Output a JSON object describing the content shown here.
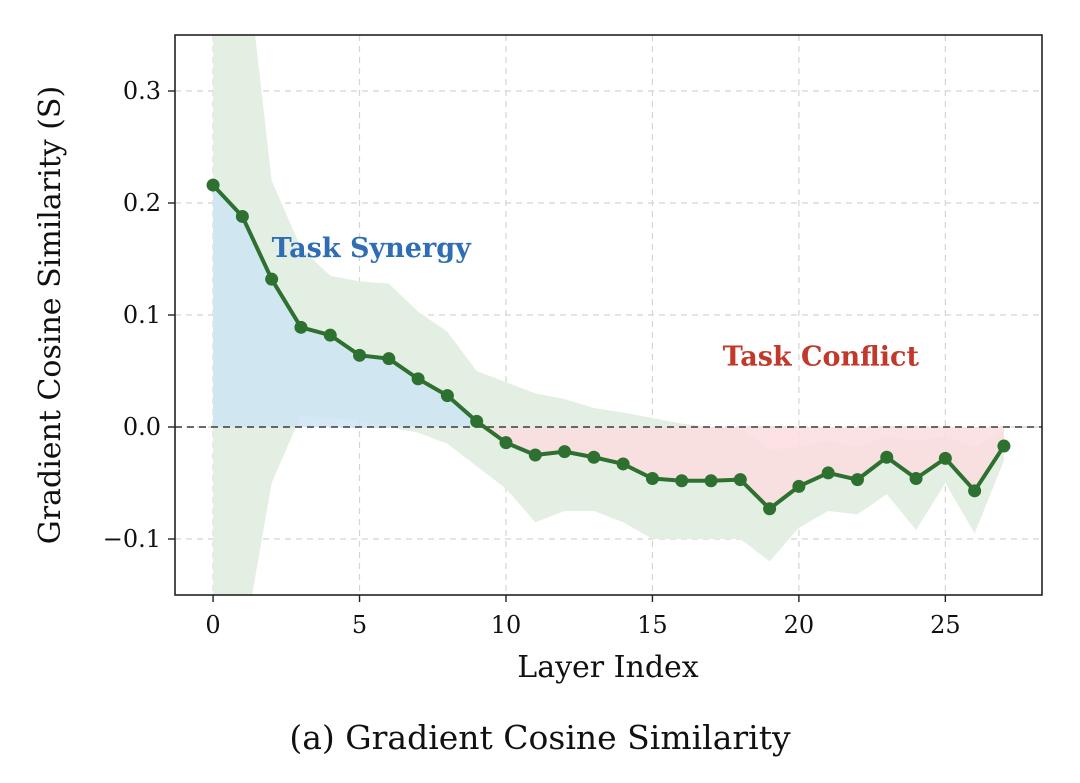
{
  "chart_data": {
    "type": "line",
    "title": "",
    "caption": "(a) Gradient Cosine Similarity",
    "xlabel": "Layer Index",
    "ylabel": "Gradient Cosine Similarity (S)",
    "xlim": [
      -1.3,
      28.3
    ],
    "ylim": [
      -0.15,
      0.35
    ],
    "xticks": [
      0,
      5,
      10,
      15,
      20,
      25
    ],
    "xtick_labels": [
      "0",
      "5",
      "10",
      "15",
      "20",
      "25"
    ],
    "yticks": [
      -0.1,
      0.0,
      0.1,
      0.2,
      0.3
    ],
    "ytick_labels": [
      "−0.1",
      "0.0",
      "0.1",
      "0.2",
      "0.3"
    ],
    "grid": true,
    "zero_line": true,
    "series": [
      {
        "x": [
          0,
          1,
          2,
          3,
          4,
          5,
          6,
          7,
          8,
          9,
          10,
          11,
          12,
          13,
          14,
          15,
          16,
          17,
          18,
          19,
          20,
          21,
          22,
          23,
          24,
          25,
          26,
          27
        ],
        "values": [
          0.216,
          0.188,
          0.132,
          0.089,
          0.082,
          0.064,
          0.061,
          0.043,
          0.028,
          0.005,
          -0.014,
          -0.025,
          -0.022,
          -0.027,
          -0.033,
          -0.046,
          -0.048,
          -0.048,
          -0.047,
          -0.073,
          -0.053,
          -0.041,
          -0.047,
          -0.027,
          -0.046,
          -0.028,
          -0.057,
          -0.017
        ],
        "band_upper": [
          0.6,
          0.45,
          0.22,
          0.16,
          0.135,
          0.13,
          0.128,
          0.103,
          0.085,
          0.05,
          0.04,
          0.03,
          0.025,
          0.017,
          0.013,
          0.008,
          0.003,
          0.0,
          0.0,
          -0.02,
          -0.018,
          -0.012,
          -0.018,
          -0.008,
          -0.012,
          -0.008,
          -0.018,
          -0.003
        ],
        "band_lower": [
          -0.2,
          -0.2,
          -0.05,
          0.01,
          0.008,
          0.005,
          0.0,
          -0.005,
          -0.015,
          -0.035,
          -0.055,
          -0.085,
          -0.075,
          -0.075,
          -0.085,
          -0.1,
          -0.1,
          -0.1,
          -0.1,
          -0.12,
          -0.09,
          -0.075,
          -0.078,
          -0.06,
          -0.092,
          -0.05,
          -0.095,
          -0.03
        ]
      }
    ],
    "annotations": [
      {
        "text": "Task Synergy",
        "x": 2.0,
        "y": 0.152,
        "color": "#2f6db5"
      },
      {
        "text": "Task Conflict",
        "x": 17.4,
        "y": 0.055,
        "color": "#c0392b"
      }
    ],
    "colors": {
      "line": "#2e7030",
      "band": "#e4efe3",
      "synergy_fill": "#cde5f3",
      "conflict_fill": "#fbdde0",
      "grid": "#d4d4d4",
      "zero_line": "#555555"
    }
  }
}
